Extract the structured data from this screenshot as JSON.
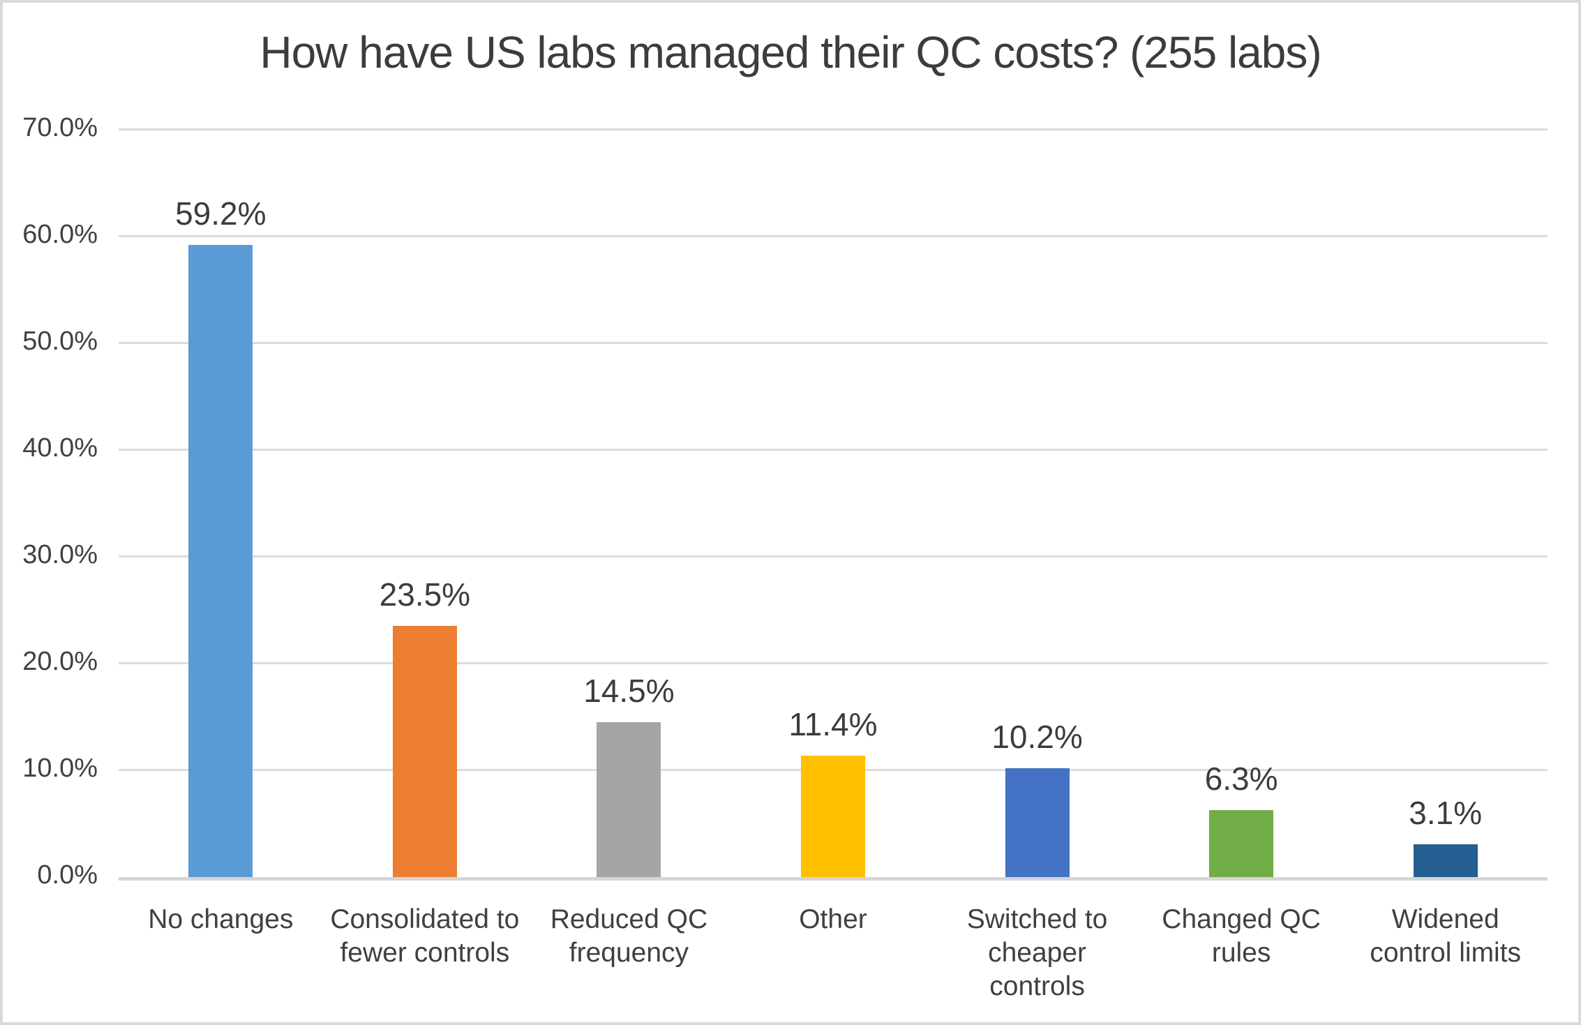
{
  "chart": {
    "title": "How have US labs managed their QC costs? (255 labs)"
  },
  "chart_data": {
    "type": "bar",
    "title": "How have US labs managed their QC costs? (255 labs)",
    "categories": [
      "No changes",
      "Consolidated to fewer controls",
      "Reduced QC frequency",
      "Other",
      "Switched to cheaper controls",
      "Changed QC rules",
      "Widened control limits"
    ],
    "category_display_lines": [
      [
        "No changes"
      ],
      [
        "Consolidated to",
        "fewer controls"
      ],
      [
        "Reduced QC",
        "frequency"
      ],
      [
        "Other"
      ],
      [
        "Switched to",
        "cheaper",
        "controls"
      ],
      [
        "Changed QC",
        "rules"
      ],
      [
        "Widened",
        "control limits"
      ]
    ],
    "values": [
      59.2,
      23.5,
      14.5,
      11.4,
      10.2,
      6.3,
      3.1
    ],
    "value_labels": [
      "59.2%",
      "23.5%",
      "14.5%",
      "11.4%",
      "10.2%",
      "6.3%",
      "3.1%"
    ],
    "bar_colors": [
      "#5B9BD5",
      "#ED7D31",
      "#A5A5A5",
      "#FFC000",
      "#4472C4",
      "#70AD47",
      "#255E91"
    ],
    "xlabel": "",
    "ylabel": "",
    "ylim": [
      0,
      70
    ],
    "ytick_step": 10,
    "ytick_labels": [
      "0.0%",
      "10.0%",
      "20.0%",
      "30.0%",
      "40.0%",
      "50.0%",
      "60.0%",
      "70.0%"
    ],
    "grid": "horizontal",
    "legend": "none",
    "style_colors": {
      "background": "#FFFFFF",
      "frame_border": "#D9D9D9",
      "gridline": "#DCDCDC",
      "axis_line": "#D6D6D6",
      "text": "#3C3C3C"
    }
  }
}
